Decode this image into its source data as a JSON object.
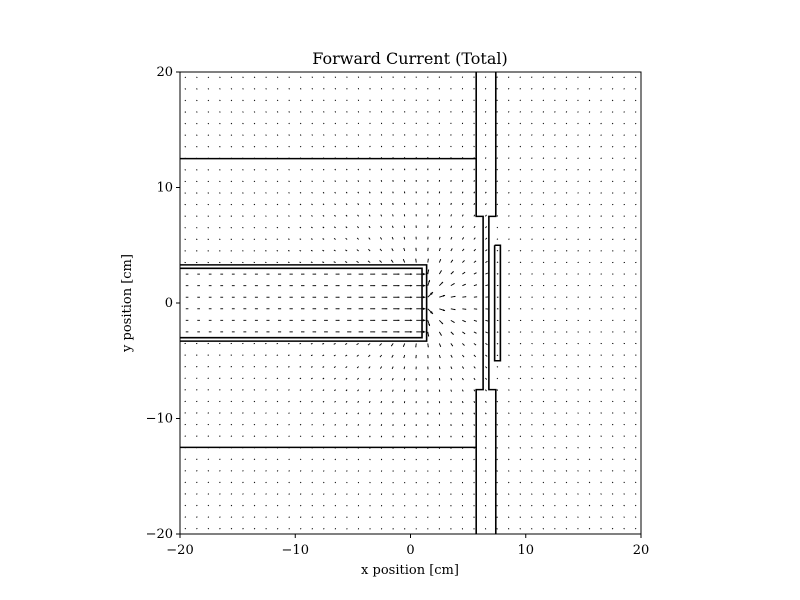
{
  "chart_data": {
    "type": "quiver",
    "title": "Forward Current (Total)",
    "xlabel": "x position [cm]",
    "ylabel": "y position [cm]",
    "xlim": [
      -20,
      20
    ],
    "ylim": [
      -20,
      20
    ],
    "xticks": [
      -20,
      -10,
      0,
      10,
      20
    ],
    "yticks": [
      -20,
      -10,
      0,
      10,
      20
    ],
    "tick_labels_x": [
      "−20",
      "−10",
      "0",
      "10",
      "20"
    ],
    "tick_labels_y": [
      "−20",
      "−10",
      "0",
      "10",
      "20"
    ],
    "grid": false,
    "vector_field": {
      "description_source": "visible arrows",
      "grid_spacing_cm": 1.0,
      "source_point": [
        1.0,
        0.0
      ],
      "color": "#000000"
    },
    "geometry_lines": [
      {
        "name": "outer-shield-top",
        "points": [
          [
            -20,
            12.5
          ],
          [
            5.7,
            12.5
          ]
        ]
      },
      {
        "name": "outer-shield-bottom",
        "points": [
          [
            -20,
            -12.5
          ],
          [
            5.7,
            -12.5
          ]
        ]
      },
      {
        "name": "beam-pipe-top-outer",
        "points": [
          [
            -20,
            3.3
          ],
          [
            1.4,
            3.3
          ],
          [
            1.4,
            -3.3
          ],
          [
            -20,
            -3.3
          ]
        ]
      },
      {
        "name": "beam-pipe-top-inner",
        "points": [
          [
            -20,
            3.0
          ],
          [
            1.0,
            3.0
          ],
          [
            1.0,
            -3.0
          ],
          [
            -20,
            -3.0
          ]
        ]
      },
      {
        "name": "wall-left-top",
        "points": [
          [
            5.7,
            20
          ],
          [
            5.7,
            7.5
          ],
          [
            6.3,
            7.5
          ],
          [
            6.3,
            -7.5
          ],
          [
            5.7,
            -7.5
          ],
          [
            5.7,
            -20
          ]
        ]
      },
      {
        "name": "wall-right-top",
        "points": [
          [
            7.4,
            20
          ],
          [
            7.4,
            7.5
          ],
          [
            6.8,
            7.5
          ],
          [
            6.8,
            -7.5
          ],
          [
            7.4,
            -7.5
          ],
          [
            7.4,
            -20
          ]
        ]
      },
      {
        "name": "target-box",
        "points": [
          [
            7.3,
            5.0
          ],
          [
            7.8,
            5.0
          ],
          [
            7.8,
            -5.0
          ],
          [
            7.3,
            -5.0
          ],
          [
            7.3,
            5.0
          ]
        ]
      }
    ]
  }
}
